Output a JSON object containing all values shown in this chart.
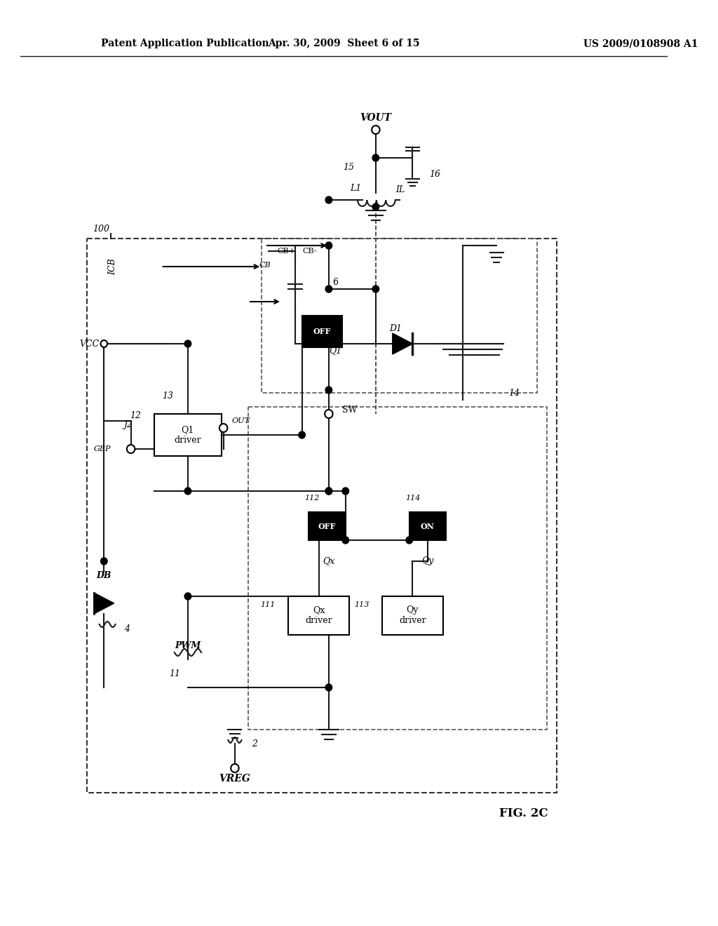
{
  "page_title_left": "Patent Application Publication",
  "page_title_center": "Apr. 30, 2009  Sheet 6 of 15",
  "page_title_right": "US 2009/0108908 A1",
  "figure_label": "FIG. 2C",
  "bg_color": "#ffffff",
  "text_color": "#000000",
  "line_color": "#1a1a1a",
  "box_color": "#000000",
  "dashed_color": "#333333"
}
